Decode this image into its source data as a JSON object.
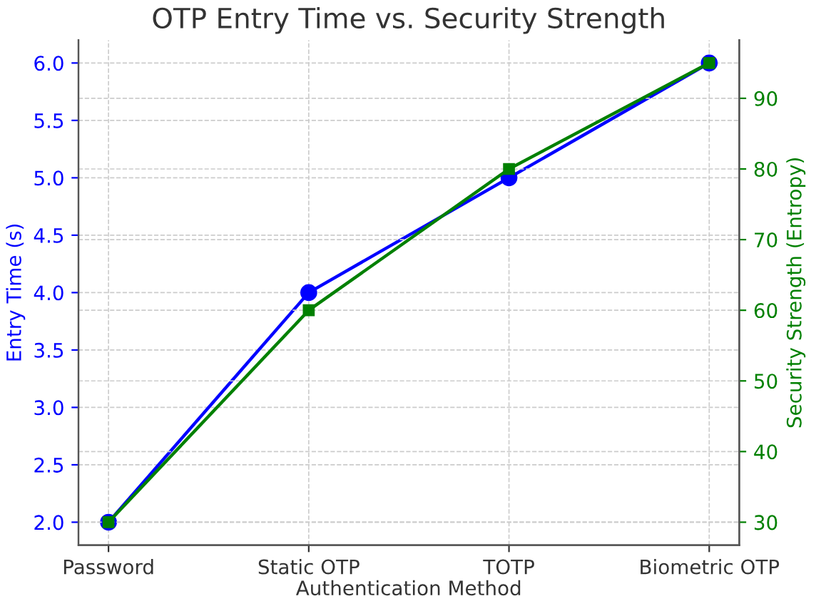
{
  "chart_data": {
    "type": "line",
    "title": "OTP Entry Time vs. Security Strength",
    "xlabel": "Authentication Method",
    "ylabel": "Entry Time (s)",
    "y2label": "Security Strength (Entropy)",
    "categories": [
      "Password",
      "Static OTP",
      "TOTP",
      "Biometric OTP"
    ],
    "series": [
      {
        "color": "#0000ff",
        "marker": "circle",
        "values": [
          2,
          4,
          5,
          6
        ]
      },
      {
        "color": "#008000",
        "marker": "square",
        "axis": "y2",
        "values": [
          30,
          60,
          80,
          95
        ]
      }
    ],
    "ylim": [
      1.8,
      6.2
    ],
    "yticks": [
      {
        "value": 2,
        "label": "2.0"
      },
      2.5,
      {
        "value": 3,
        "label": "3.0"
      },
      3.5,
      {
        "value": 4,
        "label": "4.0"
      },
      4.5,
      {
        "value": 5,
        "label": "5.0"
      },
      5.5,
      {
        "value": 6,
        "label": "6.0"
      }
    ],
    "y2lim": [
      26.75,
      98.25
    ],
    "y2ticks": [
      30,
      40,
      50,
      60,
      70,
      80,
      90
    ],
    "grid": true,
    "line_style": "solid"
  }
}
